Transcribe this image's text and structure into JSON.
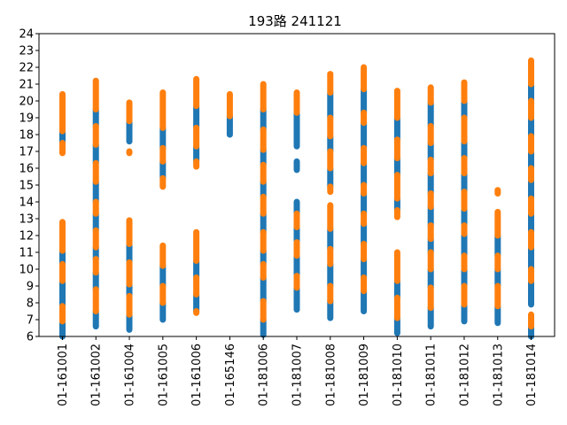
{
  "chart_data": {
    "type": "scatter",
    "title": "193路  241121",
    "xlabel": "",
    "ylabel": "",
    "ylim": [
      6,
      24
    ],
    "yticks": [
      6,
      7,
      8,
      9,
      10,
      11,
      12,
      13,
      14,
      15,
      16,
      17,
      18,
      19,
      20,
      21,
      22,
      23,
      24
    ],
    "grid": false,
    "categories": [
      "01-161001",
      "01-161002",
      "01-161004",
      "01-161005",
      "01-161006",
      "01-165146",
      "01-181006",
      "01-181007",
      "01-181008",
      "01-181009",
      "01-181010",
      "01-181011",
      "01-181012",
      "01-181013",
      "01-181014"
    ],
    "colors": {
      "blue": "#1f77b4",
      "orange": "#ff7f0e"
    },
    "series": [
      {
        "color": "blue",
        "segments": [
          [
            0,
            6.0,
            6.8
          ],
          [
            0,
            7.8,
            9.3
          ],
          [
            0,
            10.3,
            11.1
          ],
          [
            0,
            17.5,
            18.2
          ],
          [
            1,
            6.6,
            7.5
          ],
          [
            1,
            8.8,
            9.8
          ],
          [
            1,
            10.6,
            11.3
          ],
          [
            1,
            12.3,
            13.3
          ],
          [
            1,
            14.0,
            15.2
          ],
          [
            1,
            16.3,
            17.4
          ],
          [
            1,
            18.5,
            19.5
          ],
          [
            2,
            6.4,
            7.3
          ],
          [
            2,
            8.4,
            9.1
          ],
          [
            2,
            10.4,
            11.5
          ],
          [
            2,
            17.6,
            18.8
          ],
          [
            3,
            7.0,
            8.0
          ],
          [
            3,
            9.0,
            10.2
          ],
          [
            3,
            15.4,
            16.4
          ],
          [
            3,
            17.2,
            18.4
          ],
          [
            4,
            7.5,
            8.5
          ],
          [
            4,
            9.5,
            10.5
          ],
          [
            4,
            16.4,
            17.3
          ],
          [
            4,
            18.4,
            19.7
          ],
          [
            5,
            18.0,
            19.1
          ],
          [
            6,
            6.1,
            7.0
          ],
          [
            6,
            8.1,
            9.5
          ],
          [
            6,
            10.3,
            11.1
          ],
          [
            6,
            12.2,
            13.3
          ],
          [
            6,
            14.3,
            15.2
          ],
          [
            6,
            16.2,
            17.1
          ],
          [
            6,
            18.3,
            19.5
          ],
          [
            7,
            7.6,
            8.9
          ],
          [
            7,
            9.6,
            10.8
          ],
          [
            7,
            11.6,
            12.5
          ],
          [
            7,
            13.3,
            14.0
          ],
          [
            7,
            15.9,
            16.4
          ],
          [
            7,
            17.3,
            19.3
          ],
          [
            8,
            7.1,
            8.1
          ],
          [
            8,
            9.0,
            10.3
          ],
          [
            8,
            11.2,
            12.4
          ],
          [
            8,
            14.9,
            16.0
          ],
          [
            8,
            17.0,
            17.9
          ],
          [
            8,
            19.0,
            20.5
          ],
          [
            9,
            7.5,
            8.7
          ],
          [
            9,
            9.5,
            10.6
          ],
          [
            9,
            11.5,
            12.7
          ],
          [
            9,
            13.3,
            14.5
          ],
          [
            9,
            15.0,
            16.3
          ],
          [
            9,
            17.2,
            18.7
          ],
          [
            9,
            19.3,
            20.7
          ],
          [
            10,
            6.2,
            7.1
          ],
          [
            10,
            8.3,
            9.3
          ],
          [
            10,
            13.5,
            14.2
          ],
          [
            10,
            15.6,
            16.6
          ],
          [
            10,
            17.7,
            19.0
          ],
          [
            11,
            6.6,
            7.7
          ],
          [
            11,
            8.9,
            10.0
          ],
          [
            11,
            11.0,
            11.8
          ],
          [
            11,
            12.6,
            13.7
          ],
          [
            11,
            14.5,
            15.7
          ],
          [
            11,
            16.5,
            17.5
          ],
          [
            11,
            18.5,
            19.9
          ],
          [
            12,
            6.9,
            7.9
          ],
          [
            12,
            9.0,
            10.0
          ],
          [
            12,
            10.8,
            12.1
          ],
          [
            12,
            12.6,
            13.6
          ],
          [
            12,
            14.6,
            15.7
          ],
          [
            12,
            16.6,
            17.6
          ],
          [
            12,
            19.0,
            20.0
          ],
          [
            13,
            6.8,
            7.8
          ],
          [
            13,
            9.0,
            10.0
          ],
          [
            13,
            10.8,
            12.0
          ],
          [
            14,
            6.0,
            6.6
          ],
          [
            14,
            7.9,
            9.3
          ],
          [
            14,
            10.0,
            11.3
          ],
          [
            14,
            12.2,
            13.3
          ],
          [
            14,
            14.2,
            15.3
          ],
          [
            14,
            16.0,
            17.0
          ],
          [
            14,
            17.9,
            19.0
          ],
          [
            14,
            20.0,
            21.0
          ]
        ]
      },
      {
        "color": "orange",
        "segments": [
          [
            0,
            6.9,
            7.8
          ],
          [
            0,
            9.3,
            10.3
          ],
          [
            0,
            11.1,
            12.8
          ],
          [
            0,
            16.9,
            17.5
          ],
          [
            0,
            18.2,
            20.4
          ],
          [
            1,
            7.5,
            8.8
          ],
          [
            1,
            9.8,
            10.6
          ],
          [
            1,
            11.3,
            12.3
          ],
          [
            1,
            13.3,
            14.0
          ],
          [
            1,
            15.2,
            16.3
          ],
          [
            1,
            17.4,
            18.5
          ],
          [
            1,
            19.5,
            21.2
          ],
          [
            2,
            7.3,
            8.4
          ],
          [
            2,
            9.1,
            10.4
          ],
          [
            2,
            11.5,
            12.9
          ],
          [
            2,
            16.9,
            17.0
          ],
          [
            2,
            18.8,
            19.9
          ],
          [
            3,
            8.0,
            9.0
          ],
          [
            3,
            10.2,
            11.4
          ],
          [
            3,
            14.9,
            15.4
          ],
          [
            3,
            16.4,
            17.2
          ],
          [
            3,
            18.4,
            20.5
          ],
          [
            4,
            7.4,
            7.5
          ],
          [
            4,
            8.5,
            9.5
          ],
          [
            4,
            10.5,
            12.2
          ],
          [
            4,
            16.1,
            16.4
          ],
          [
            4,
            17.3,
            18.4
          ],
          [
            4,
            19.7,
            21.3
          ],
          [
            5,
            19.1,
            20.4
          ],
          [
            6,
            7.0,
            8.1
          ],
          [
            6,
            9.5,
            10.3
          ],
          [
            6,
            11.1,
            12.2
          ],
          [
            6,
            13.3,
            14.3
          ],
          [
            6,
            15.2,
            16.2
          ],
          [
            6,
            17.1,
            18.3
          ],
          [
            6,
            19.5,
            21.0
          ],
          [
            7,
            8.9,
            9.6
          ],
          [
            7,
            10.8,
            11.6
          ],
          [
            7,
            12.5,
            13.3
          ],
          [
            7,
            19.3,
            20.5
          ],
          [
            8,
            8.1,
            9.0
          ],
          [
            8,
            10.3,
            11.2
          ],
          [
            8,
            12.4,
            13.8
          ],
          [
            8,
            14.6,
            14.9
          ],
          [
            8,
            16.0,
            17.0
          ],
          [
            8,
            17.9,
            19.0
          ],
          [
            8,
            20.5,
            21.6
          ],
          [
            9,
            8.7,
            9.5
          ],
          [
            9,
            10.6,
            11.5
          ],
          [
            9,
            12.7,
            13.3
          ],
          [
            9,
            14.5,
            15.0
          ],
          [
            9,
            16.3,
            17.2
          ],
          [
            9,
            18.7,
            19.3
          ],
          [
            9,
            20.7,
            22.0
          ],
          [
            10,
            7.1,
            8.3
          ],
          [
            10,
            9.3,
            11.0
          ],
          [
            10,
            13.1,
            13.5
          ],
          [
            10,
            14.2,
            15.6
          ],
          [
            10,
            16.6,
            17.7
          ],
          [
            10,
            19.0,
            20.6
          ],
          [
            11,
            7.7,
            8.9
          ],
          [
            11,
            10.0,
            11.0
          ],
          [
            11,
            11.8,
            12.6
          ],
          [
            11,
            13.7,
            14.5
          ],
          [
            11,
            15.7,
            16.5
          ],
          [
            11,
            17.5,
            18.5
          ],
          [
            11,
            19.9,
            20.8
          ],
          [
            12,
            7.9,
            9.0
          ],
          [
            12,
            10.0,
            10.8
          ],
          [
            12,
            12.1,
            12.6
          ],
          [
            12,
            13.6,
            14.6
          ],
          [
            12,
            15.7,
            16.6
          ],
          [
            12,
            17.6,
            19.0
          ],
          [
            12,
            20.0,
            21.1
          ],
          [
            13,
            7.8,
            9.0
          ],
          [
            13,
            10.0,
            10.8
          ],
          [
            13,
            12.0,
            13.4
          ],
          [
            13,
            14.5,
            14.7
          ],
          [
            14,
            6.6,
            7.3
          ],
          [
            14,
            9.3,
            10.0
          ],
          [
            14,
            11.3,
            12.2
          ],
          [
            14,
            13.3,
            14.2
          ],
          [
            14,
            15.3,
            16.0
          ],
          [
            14,
            17.0,
            17.9
          ],
          [
            14,
            19.0,
            20.0
          ],
          [
            14,
            21.0,
            22.4
          ]
        ]
      }
    ]
  }
}
